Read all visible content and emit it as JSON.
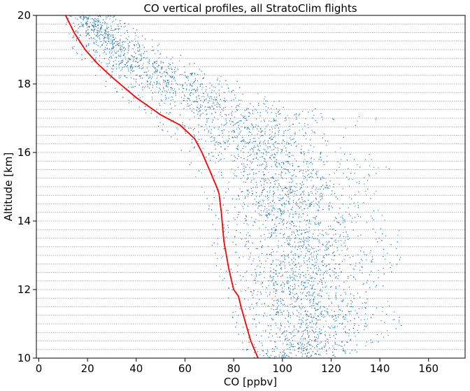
{
  "chart_data": {
    "type": "scatter",
    "title": "CO vertical profiles, all StratoClim flights",
    "xlabel": "CO [ppbv]",
    "ylabel": "Altitude [km]",
    "xlim": [
      -1,
      175
    ],
    "ylim": [
      10,
      20
    ],
    "x_ticks": [
      "0",
      "20",
      "40",
      "60",
      "80",
      "100",
      "120",
      "140",
      "160"
    ],
    "y_ticks": [
      "10",
      "12",
      "14",
      "16",
      "18",
      "20"
    ],
    "grid": "horizontal dotted lines every 0.25 km",
    "colors": {
      "scatter": "#1f77b4",
      "mean_profile": "#ff0000",
      "grid": "#999999"
    },
    "scatter_envelope": [
      {
        "alt": 10.0,
        "min": 84,
        "max": 125
      },
      {
        "alt": 10.5,
        "min": 82,
        "max": 140
      },
      {
        "alt": 11.0,
        "min": 80,
        "max": 150
      },
      {
        "alt": 11.5,
        "min": 78,
        "max": 145
      },
      {
        "alt": 12.0,
        "min": 76,
        "max": 140
      },
      {
        "alt": 12.5,
        "min": 73,
        "max": 145
      },
      {
        "alt": 13.0,
        "min": 72,
        "max": 150
      },
      {
        "alt": 13.5,
        "min": 70,
        "max": 150
      },
      {
        "alt": 14.0,
        "min": 70,
        "max": 145
      },
      {
        "alt": 14.5,
        "min": 68,
        "max": 140
      },
      {
        "alt": 15.0,
        "min": 66,
        "max": 140
      },
      {
        "alt": 15.5,
        "min": 62,
        "max": 145
      },
      {
        "alt": 16.0,
        "min": 58,
        "max": 135
      },
      {
        "alt": 16.5,
        "min": 52,
        "max": 125
      },
      {
        "alt": 17.0,
        "min": 42,
        "max": 140
      },
      {
        "alt": 17.5,
        "min": 35,
        "max": 100
      },
      {
        "alt": 18.0,
        "min": 26,
        "max": 85
      },
      {
        "alt": 18.5,
        "min": 20,
        "max": 68
      },
      {
        "alt": 19.0,
        "min": 14,
        "max": 55
      },
      {
        "alt": 19.5,
        "min": 11,
        "max": 42
      },
      {
        "alt": 20.0,
        "min": 10,
        "max": 32
      }
    ],
    "series": [
      {
        "x": [
          90,
          87,
          85,
          83,
          82,
          80,
          79,
          78,
          77,
          76,
          75.5,
          75,
          74,
          73,
          70,
          67,
          64,
          58,
          50,
          40,
          30,
          24,
          19,
          14.5,
          11
        ],
        "y": [
          10.0,
          10.5,
          11.0,
          11.5,
          11.8,
          12.0,
          12.3,
          12.6,
          13.0,
          13.4,
          13.8,
          14.2,
          14.8,
          15.0,
          15.5,
          16.0,
          16.4,
          16.8,
          17.1,
          17.6,
          18.2,
          18.6,
          19.0,
          19.5,
          20.0
        ]
      }
    ]
  }
}
